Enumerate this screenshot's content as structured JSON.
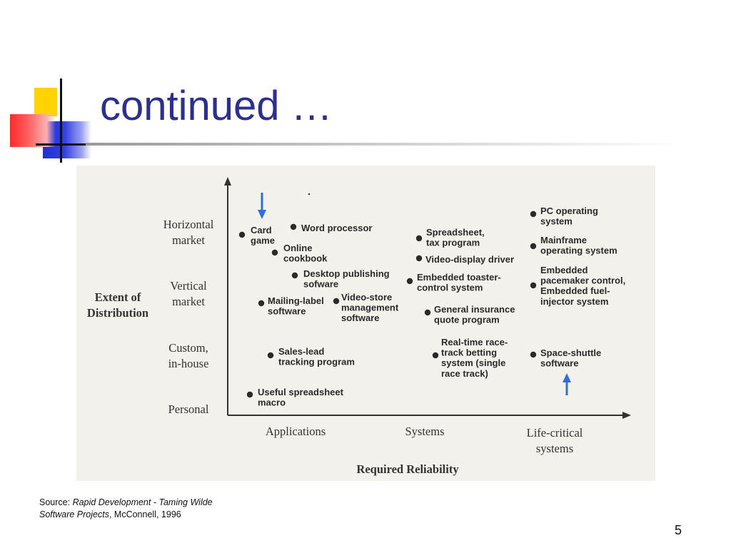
{
  "slide": {
    "title": "continued …",
    "page_number": "5"
  },
  "source": {
    "prefix": "Source:",
    "book_title_line1": "Rapid Development - Taming Wilde",
    "book_title_line2": "Software Projects",
    "rest": ", McConnell, 1996"
  },
  "figure": {
    "y_axis_label_line1": "Extent of",
    "y_axis_label_line2": "Distribution",
    "x_axis_label": "Required Reliability",
    "y_categories": [
      {
        "line1": "Horizontal",
        "line2": "market"
      },
      {
        "line1": "Vertical",
        "line2": "market"
      },
      {
        "line1": "Custom,",
        "line2": "in-house"
      },
      {
        "line1": "Personal",
        "line2": ""
      }
    ],
    "x_categories": [
      {
        "line1": "Applications",
        "line2": ""
      },
      {
        "line1": "Systems",
        "line2": ""
      },
      {
        "line1": "Life-critical",
        "line2": "systems"
      }
    ],
    "items": [
      {
        "lines": [
          "Card",
          "game"
        ]
      },
      {
        "lines": [
          "Word processor"
        ]
      },
      {
        "lines": [
          "Online",
          "cookbook"
        ]
      },
      {
        "lines": [
          "Desktop publishing",
          "sofware"
        ]
      },
      {
        "lines": [
          "Mailing-label",
          "software"
        ]
      },
      {
        "lines": [
          "Video-store",
          "management",
          "software"
        ]
      },
      {
        "lines": [
          "Sales-lead",
          "tracking program"
        ]
      },
      {
        "lines": [
          "Useful spreadsheet",
          "macro"
        ]
      },
      {
        "lines": [
          "Spreadsheet,",
          "tax program"
        ]
      },
      {
        "lines": [
          "Video-display driver"
        ]
      },
      {
        "lines": [
          "Embedded toaster-",
          "control system"
        ]
      },
      {
        "lines": [
          "General insurance",
          "quote program"
        ]
      },
      {
        "lines": [
          "Real-time race-",
          "track betting",
          "system (single",
          "race track)"
        ]
      },
      {
        "lines": [
          "PC operating",
          "system"
        ]
      },
      {
        "lines": [
          "Mainframe",
          "operating system"
        ]
      },
      {
        "lines": [
          "Embedded",
          "pacemaker control,",
          "Embedded fuel-",
          "injector system"
        ]
      },
      {
        "lines": [
          "Space-shuttle",
          "software"
        ]
      }
    ],
    "colors": {
      "arrow": "#2f6fe6",
      "title": "#2b2f8f"
    }
  }
}
